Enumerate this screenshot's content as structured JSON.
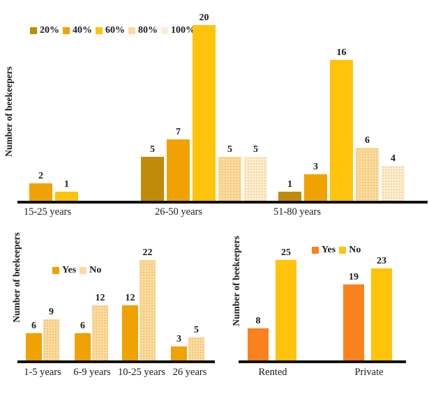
{
  "chart_data": [
    {
      "id": "age-groups",
      "type": "bar",
      "title": "",
      "xlabel": "",
      "ylabel": "Number of beekeepers",
      "categories": [
        "15-25 years",
        "26-50 years",
        "51-80 years"
      ],
      "series": [
        {
          "name": "20%",
          "color": "#C08A0A",
          "pattern": false,
          "values": [
            null,
            5,
            1
          ]
        },
        {
          "name": "40%",
          "color": "#F0A202",
          "pattern": false,
          "values": [
            2,
            7,
            3
          ]
        },
        {
          "name": "60%",
          "color": "#FFC30B",
          "pattern": false,
          "values": [
            1,
            20,
            16
          ]
        },
        {
          "name": "80%",
          "color": "#FADCA0",
          "pattern": true,
          "values": [
            null,
            5,
            6
          ]
        },
        {
          "name": "100%",
          "color": "#FCEFD3",
          "pattern": true,
          "values": [
            null,
            5,
            4
          ]
        }
      ],
      "ylim": [
        0,
        20
      ],
      "grid": false,
      "legend_position": "top-left",
      "data_labels": true
    },
    {
      "id": "experience-years",
      "type": "bar",
      "title": "",
      "xlabel": "",
      "ylabel": "Number of beekeepers",
      "categories": [
        "1-5 years",
        "6-9 years",
        "10-25 years",
        "26 years"
      ],
      "series": [
        {
          "name": "Yes",
          "color": "#F0A202",
          "pattern": false,
          "values": [
            6,
            6,
            12,
            3
          ]
        },
        {
          "name": "No",
          "color": "#FADCA0",
          "pattern": true,
          "values": [
            9,
            12,
            22,
            5
          ]
        }
      ],
      "ylim": [
        0,
        22
      ],
      "grid": false,
      "legend_position": "top-center",
      "data_labels": true
    },
    {
      "id": "apiary-ownership",
      "type": "bar",
      "title": "",
      "xlabel": "",
      "ylabel": "Number of beekeepers",
      "categories": [
        "Rented",
        "Private"
      ],
      "series": [
        {
          "name": "Yes",
          "color": "#F9821F",
          "pattern": false,
          "values": [
            8,
            19
          ]
        },
        {
          "name": "No",
          "color": "#FFC30B",
          "pattern": false,
          "values": [
            25,
            23
          ]
        }
      ],
      "ylim": [
        0,
        25
      ],
      "grid": false,
      "legend_position": "top-center",
      "data_labels": true
    }
  ],
  "colors": {
    "axis_line": "#111111",
    "text": "#1a1a1a",
    "background": "#ffffff"
  }
}
